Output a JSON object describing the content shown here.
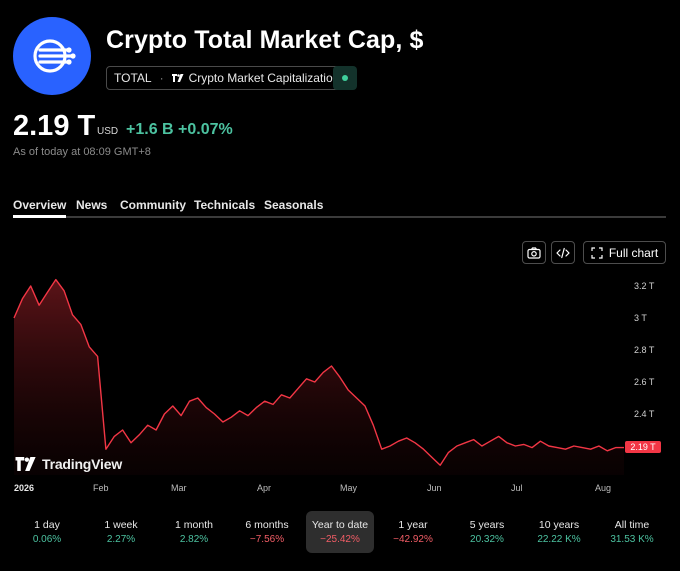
{
  "header": {
    "title": "Crypto Total Market Cap, $",
    "symbol": "TOTAL",
    "separator": "·",
    "source": "Crypto Market Capitalization",
    "logo_icon": "crypto-total-logo-icon",
    "live_status_color": "#3fcf9c"
  },
  "quote": {
    "price": "2.19 T",
    "currency": "USD",
    "change": "+1.6 B +0.07%",
    "as_of": "As of today at 08:09 GMT+8"
  },
  "tabs": [
    "Overview",
    "News",
    "Community",
    "Technicals",
    "Seasonals"
  ],
  "active_tab": "Overview",
  "toolbar": {
    "snapshot_icon": "camera-icon",
    "embed_icon": "code-icon",
    "full_chart_icon": "expand-icon",
    "full_chart_label": "Full chart"
  },
  "watermark": "TradingView",
  "current_price_label": "2.19 T",
  "chart_data": {
    "type": "area",
    "y_axis_ticks": [
      "3.2 T",
      "3 T",
      "2.8 T",
      "2.6 T",
      "2.4 T"
    ],
    "y_axis_tick_values": [
      3.2,
      3.0,
      2.8,
      2.6,
      2.4
    ],
    "x_axis_ticks": [
      "2026",
      "Feb",
      "Mar",
      "Apr",
      "May",
      "Jun",
      "Jul",
      "Aug"
    ],
    "ylim": [
      2.0,
      3.26
    ],
    "line_color": "#f23645",
    "x_index": [
      0,
      3,
      6,
      9,
      12,
      15,
      18,
      21,
      24,
      27,
      30,
      33,
      36,
      39,
      42,
      45,
      48,
      51,
      54,
      57,
      60,
      63,
      66,
      69,
      72,
      75,
      78,
      81,
      84,
      87,
      90,
      93,
      96,
      99,
      102,
      105,
      108,
      111,
      114,
      117,
      120,
      123,
      126,
      129,
      132,
      135,
      138,
      141,
      144,
      147,
      150,
      153,
      156,
      159,
      162,
      165,
      168,
      171,
      174,
      177,
      180,
      183,
      186,
      189,
      192,
      195,
      198,
      201,
      204,
      207,
      210,
      213,
      216,
      219
    ],
    "values": [
      3.0,
      3.12,
      3.2,
      3.08,
      3.16,
      3.24,
      3.17,
      3.02,
      2.96,
      2.82,
      2.76,
      2.18,
      2.26,
      2.3,
      2.22,
      2.27,
      2.33,
      2.3,
      2.4,
      2.45,
      2.39,
      2.48,
      2.5,
      2.44,
      2.4,
      2.35,
      2.38,
      2.42,
      2.39,
      2.44,
      2.48,
      2.46,
      2.52,
      2.5,
      2.56,
      2.62,
      2.6,
      2.66,
      2.7,
      2.63,
      2.55,
      2.5,
      2.45,
      2.33,
      2.18,
      2.2,
      2.23,
      2.25,
      2.22,
      2.18,
      2.13,
      2.08,
      2.16,
      2.2,
      2.22,
      2.24,
      2.2,
      2.23,
      2.26,
      2.22,
      2.2,
      2.21,
      2.19,
      2.23,
      2.2,
      2.19,
      2.18,
      2.2,
      2.19,
      2.18,
      2.2,
      2.17,
      2.19,
      2.19
    ]
  },
  "periods": [
    {
      "label": "1 day",
      "value": "0.06%",
      "trend": "pos"
    },
    {
      "label": "1 week",
      "value": "2.27%",
      "trend": "pos"
    },
    {
      "label": "1 month",
      "value": "2.82%",
      "trend": "pos"
    },
    {
      "label": "6 months",
      "value": "−7.56%",
      "trend": "neg"
    },
    {
      "label": "Year to date",
      "value": "−25.42%",
      "trend": "neg"
    },
    {
      "label": "1 year",
      "value": "−42.92%",
      "trend": "neg"
    },
    {
      "label": "5 years",
      "value": "20.32%",
      "trend": "pos"
    },
    {
      "label": "10 years",
      "value": "22.22 K%",
      "trend": "pos"
    },
    {
      "label": "All time",
      "value": "31.53 K%",
      "trend": "pos"
    }
  ],
  "active_period": "Year to date"
}
